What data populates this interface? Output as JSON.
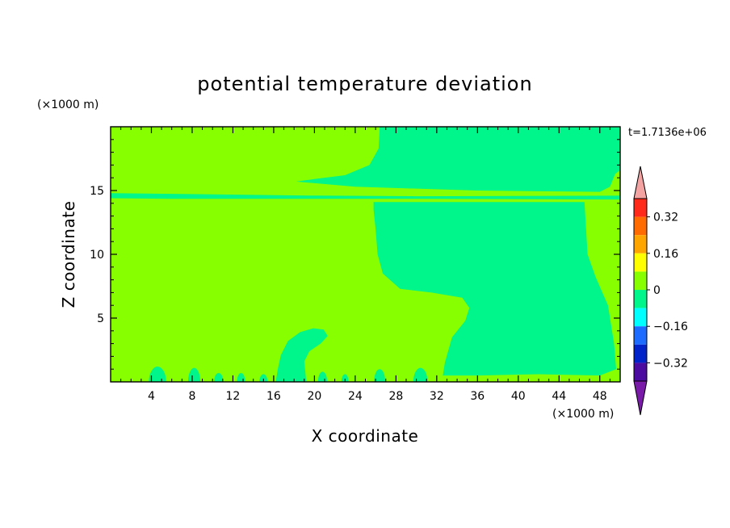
{
  "chart_data": {
    "type": "heatmap",
    "title": "potential temperature deviation",
    "xlabel": "X coordinate",
    "ylabel": "Z coordinate",
    "x_unit": "(×1000 m)",
    "y_unit": "(×1000 m)",
    "time_label": "t=1.7136e+06",
    "xlim": [
      0,
      50
    ],
    "ylim": [
      0,
      20
    ],
    "x_ticks": [
      4,
      8,
      12,
      16,
      20,
      24,
      28,
      32,
      36,
      40,
      44,
      48
    ],
    "y_ticks": [
      5,
      10,
      15
    ],
    "colorbar": {
      "levels": [
        {
          "lower": 0.4,
          "upper": null,
          "color": "#f4a3a3"
        },
        {
          "lower": 0.32,
          "upper": 0.4,
          "color": "#ff2a1a"
        },
        {
          "lower": 0.24,
          "upper": 0.32,
          "color": "#ff6b00"
        },
        {
          "lower": 0.16,
          "upper": 0.24,
          "color": "#ffa500"
        },
        {
          "lower": 0.08,
          "upper": 0.16,
          "color": "#ffff00"
        },
        {
          "lower": 0,
          "upper": 0.08,
          "color": "#88ff00"
        },
        {
          "lower": -0.08,
          "upper": 0,
          "color": "#00f58a"
        },
        {
          "lower": -0.16,
          "upper": -0.08,
          "color": "#00ffff"
        },
        {
          "lower": -0.24,
          "upper": -0.16,
          "color": "#1e6cff"
        },
        {
          "lower": -0.32,
          "upper": -0.24,
          "color": "#0022c8"
        },
        {
          "lower": -0.4,
          "upper": -0.32,
          "color": "#4b0aa0"
        },
        {
          "lower": null,
          "upper": -0.4,
          "color": "#7a1aa8"
        }
      ],
      "tick_labels": [
        "0.32",
        "0.16",
        "0",
        "−0.16",
        "−0.32"
      ],
      "tick_values": [
        0.32,
        0.16,
        0,
        -0.16,
        -0.32
      ]
    },
    "background_field_color": "#88ff00",
    "negative_field_color": "#00f58a",
    "regions": [
      {
        "name": "upper-right-negative",
        "level": "-0.08 to 0",
        "outline": [
          [
            26.4,
            20
          ],
          [
            50,
            20
          ],
          [
            50,
            16.6
          ],
          [
            49.5,
            16.3
          ],
          [
            49,
            15.3
          ],
          [
            48,
            14.9
          ],
          [
            36,
            15.0
          ],
          [
            24,
            15.3
          ],
          [
            18.2,
            15.7
          ],
          [
            20,
            15.9
          ],
          [
            23,
            16.2
          ],
          [
            25.4,
            17.0
          ],
          [
            26.3,
            18.3
          ]
        ]
      },
      {
        "name": "thin-band-15km",
        "level": "-0.08 to 0",
        "outline": [
          [
            0,
            14.8
          ],
          [
            20,
            14.6
          ],
          [
            30,
            14.55
          ],
          [
            50,
            14.6
          ],
          [
            50,
            14.3
          ],
          [
            30,
            14.35
          ],
          [
            14,
            14.35
          ],
          [
            6,
            14.35
          ],
          [
            0,
            14.4
          ]
        ]
      },
      {
        "name": "lower-right-negative",
        "level": "-0.08 to 0",
        "outline": [
          [
            25.8,
            14.1
          ],
          [
            46.5,
            14.1
          ],
          [
            46.8,
            10.0
          ],
          [
            47.6,
            8.2
          ],
          [
            48.8,
            6.0
          ],
          [
            49.4,
            3.0
          ],
          [
            49.6,
            1.0
          ],
          [
            48,
            0.5
          ],
          [
            42,
            0.6
          ],
          [
            36,
            0.5
          ],
          [
            32.6,
            0.5
          ],
          [
            32.8,
            1.5
          ],
          [
            33.5,
            3.5
          ],
          [
            34.8,
            4.8
          ],
          [
            35.2,
            5.8
          ],
          [
            34.5,
            6.6
          ],
          [
            31.5,
            7.0
          ],
          [
            28.4,
            7.3
          ],
          [
            26.7,
            8.5
          ],
          [
            26.2,
            10.0
          ],
          [
            26.0,
            12.0
          ],
          [
            25.8,
            13.5
          ]
        ]
      },
      {
        "name": "mid-bottom-plume",
        "level": "-0.08 to 0",
        "outline": [
          [
            16.2,
            0
          ],
          [
            19.2,
            0
          ],
          [
            19.0,
            1.6
          ],
          [
            19.5,
            2.4
          ],
          [
            20.6,
            3.0
          ],
          [
            21.3,
            3.6
          ],
          [
            20.9,
            4.1
          ],
          [
            19.9,
            4.2
          ],
          [
            18.6,
            3.9
          ],
          [
            17.4,
            3.2
          ],
          [
            16.7,
            2.1
          ],
          [
            16.4,
            1.0
          ]
        ]
      },
      {
        "name": "bump-4km",
        "level": "-0.08 to 0",
        "center": [
          4.6,
          0.5
        ],
        "size": [
          1.7,
          1.2
        ]
      },
      {
        "name": "bump-8km",
        "level": "-0.08 to 0",
        "center": [
          8.2,
          0.5
        ],
        "size": [
          1.2,
          1.1
        ]
      },
      {
        "name": "bump-10km",
        "level": "-0.08 to 0",
        "center": [
          10.6,
          0.3
        ],
        "size": [
          0.9,
          0.7
        ]
      },
      {
        "name": "bump-12km",
        "level": "-0.08 to 0",
        "center": [
          12.8,
          0.35
        ],
        "size": [
          0.8,
          0.7
        ]
      },
      {
        "name": "bump-15km",
        "level": "-0.08 to 0",
        "center": [
          15.0,
          0.3
        ],
        "size": [
          0.8,
          0.6
        ]
      },
      {
        "name": "bump-21km",
        "level": "-0.08 to 0",
        "center": [
          20.8,
          0.4
        ],
        "size": [
          0.9,
          0.8
        ]
      },
      {
        "name": "bump-23km",
        "level": "-0.08 to 0",
        "center": [
          23.0,
          0.25
        ],
        "size": [
          0.7,
          0.6
        ]
      },
      {
        "name": "bump-26km",
        "level": "-0.08 to 0",
        "center": [
          26.4,
          0.5
        ],
        "size": [
          1.1,
          1.0
        ]
      },
      {
        "name": "bump-30km",
        "level": "-0.08 to 0",
        "center": [
          30.4,
          0.55
        ],
        "size": [
          1.4,
          1.1
        ]
      }
    ]
  }
}
